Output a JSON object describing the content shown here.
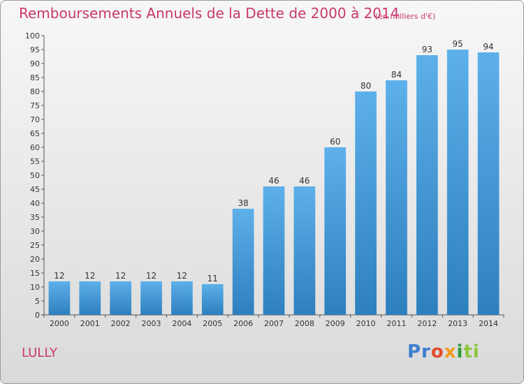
{
  "chart_data": {
    "type": "bar",
    "title": "Remboursements Annuels de la Dette de 2000 à 2014",
    "subtitle": "(en milliers d'€)",
    "categories": [
      "2000",
      "2001",
      "2002",
      "2003",
      "2004",
      "2005",
      "2006",
      "2007",
      "2008",
      "2009",
      "2010",
      "2011",
      "2012",
      "2013",
      "2014"
    ],
    "values": [
      12,
      12,
      12,
      12,
      12,
      11,
      38,
      46,
      46,
      60,
      80,
      84,
      93,
      95,
      94
    ],
    "ylim": [
      0,
      100
    ],
    "ytick_step": 5,
    "grid": false,
    "bar_color_top": "#5eb0ea",
    "bar_color_bottom": "#2d7fbe"
  },
  "footer": {
    "commune": "LULLY",
    "logo_parts": [
      "Pr",
      "o",
      "x",
      "i",
      "ti"
    ]
  }
}
